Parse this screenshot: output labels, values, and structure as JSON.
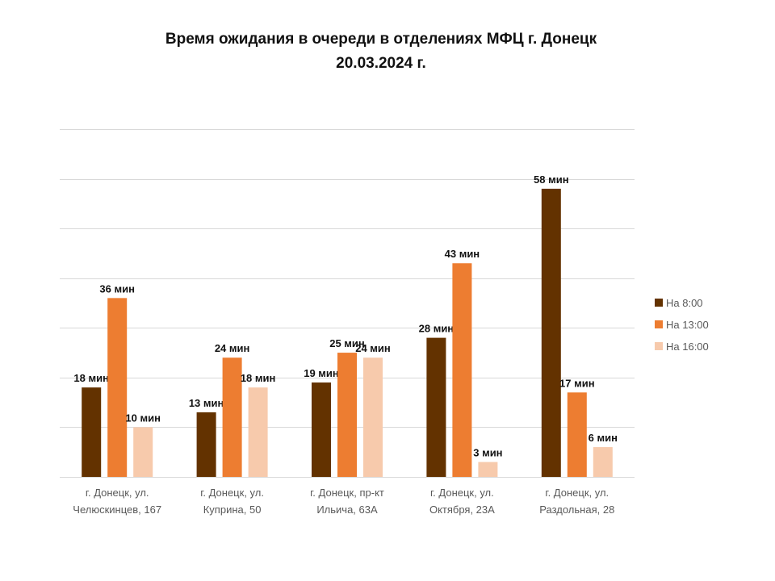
{
  "chart_data": {
    "type": "bar",
    "title_line1": "Время ожидания в очереди в отделениях МФЦ г. Донецк",
    "title_line2": "20.03.2024 г.",
    "xlabel": "",
    "ylabel": "",
    "ylim": [
      0,
      70
    ],
    "ytick_step": 10,
    "y_tick_labels_shown": false,
    "grid": true,
    "legend_position": "right",
    "value_suffix": " мин",
    "categories": [
      [
        "г. Донецк, ул.",
        "Челюскинцев, 167"
      ],
      [
        "г. Донецк, ул.",
        "Куприна, 50"
      ],
      [
        "г. Донецк, пр-кт",
        "Ильича, 63А"
      ],
      [
        "г. Донецк, ул.",
        "Октября, 23А"
      ],
      [
        "г. Донецк, ул.",
        "Раздольная, 28"
      ]
    ],
    "series": [
      {
        "name": "На 8:00",
        "color": "#633200",
        "values": [
          18,
          13,
          19,
          28,
          58
        ]
      },
      {
        "name": "На 13:00",
        "color": "#ed7d31",
        "values": [
          36,
          24,
          25,
          43,
          17
        ]
      },
      {
        "name": "На 16:00",
        "color": "#f7caac",
        "values": [
          10,
          18,
          24,
          3,
          6
        ]
      }
    ]
  }
}
